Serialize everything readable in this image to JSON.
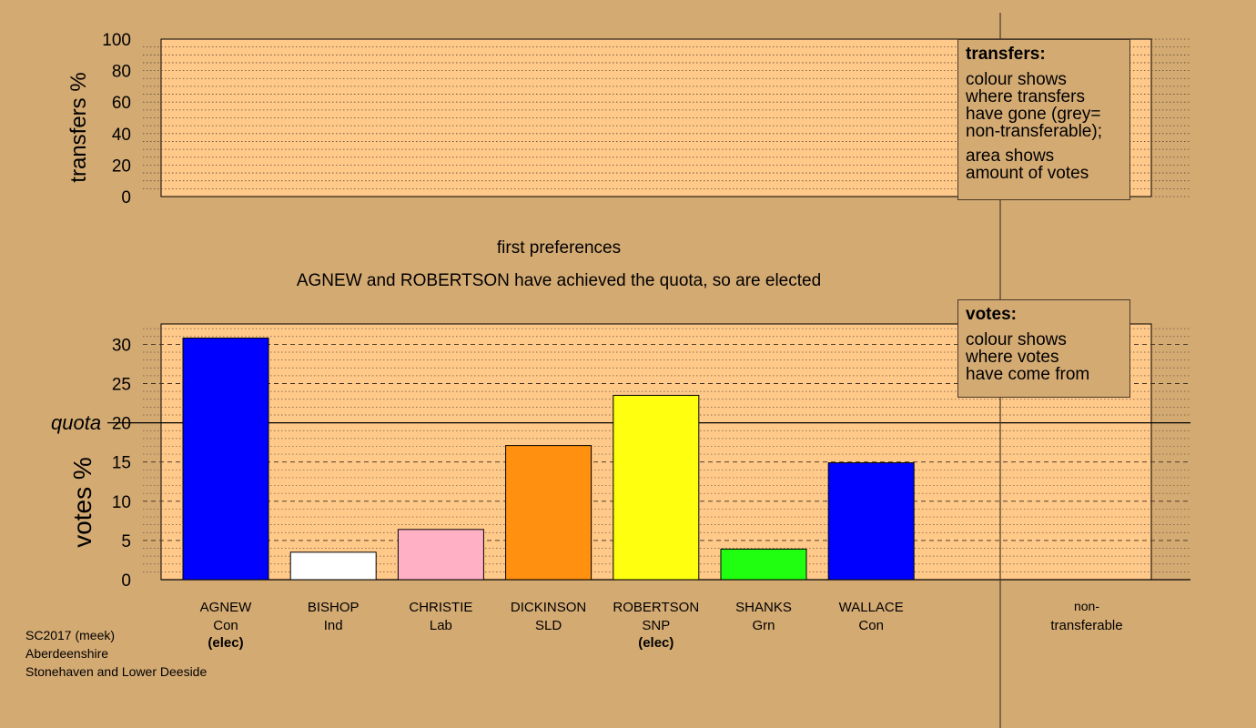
{
  "top_panel": {
    "ylabel": "transfers %",
    "yticks": [
      0,
      20,
      40,
      60,
      80,
      100
    ]
  },
  "subtitle": "first preferences",
  "headline": "AGNEW and ROBERTSON have achieved the quota, so are elected",
  "transfers_legend": {
    "title": "transfers:",
    "lines1": [
      "colour shows",
      "where transfers",
      "have gone (grey=",
      "non-transferable);"
    ],
    "lines2": [
      "area shows",
      "amount of votes"
    ]
  },
  "votes_legend": {
    "title": "votes:",
    "lines": [
      "colour shows",
      "where votes",
      "have come from"
    ]
  },
  "quota_label": "quota",
  "footer": [
    "SC2017 (meek)",
    "Aberdeenshire",
    "Stonehaven and Lower Deeside"
  ],
  "colors": {
    "background": "#d4aa73",
    "plot_area": "#ffc98a",
    "con": "#0000ff",
    "ind": "#ffffff",
    "lab": "#ffb0c4",
    "sld": "#ff9010",
    "snp": "#ffff10",
    "grn": "#20ff10"
  },
  "chart_data": {
    "type": "bar",
    "ylabel": "votes %",
    "ylim": [
      0,
      32
    ],
    "yticks": [
      0,
      5,
      10,
      15,
      20,
      25,
      30
    ],
    "quota": 20,
    "categories": [
      "AGNEW",
      "BISHOP",
      "CHRISTIE",
      "DICKINSON",
      "ROBERTSON",
      "SHANKS",
      "WALLACE",
      "non-transferable"
    ],
    "category_parties": [
      "Con",
      "Ind",
      "Lab",
      "SLD",
      "SNP",
      "Grn",
      "Con",
      "transferable"
    ],
    "category_notes": [
      "(elec)",
      "",
      "",
      "",
      "(elec)",
      "",
      "",
      ""
    ],
    "values": [
      30.8,
      3.5,
      6.4,
      17.1,
      23.5,
      3.9,
      14.9,
      0
    ],
    "bar_colors": [
      "#0000ff",
      "#ffffff",
      "#ffb0c4",
      "#ff9010",
      "#ffff10",
      "#20ff10",
      "#0000ff",
      "#808080"
    ]
  }
}
